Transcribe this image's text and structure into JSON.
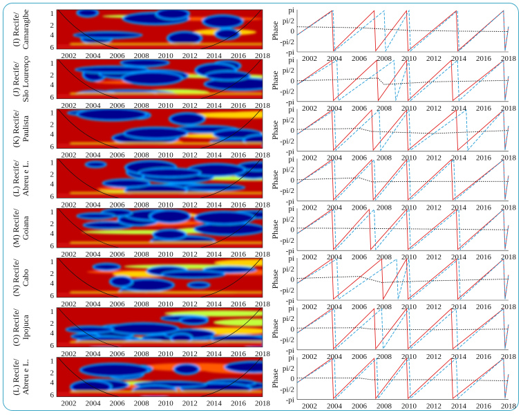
{
  "phase_axis": {
    "ylabel": "Phase",
    "yticks": [
      "pi",
      "pi/2",
      "0",
      "-pi/2",
      "-pi"
    ]
  },
  "x_ticks": [
    "2002",
    "2004",
    "2006",
    "2008",
    "2010",
    "2012",
    "2014",
    "2016",
    "2018"
  ],
  "period_ticks": [
    "1",
    "2",
    "4",
    "6"
  ],
  "colors": {
    "border": "#3aa6c6",
    "phase_red": "#e02020",
    "phase_blue": "#1f9ad6",
    "phase_black": "#111111"
  },
  "rows": [
    {
      "label": "(I) Recife/ Camaragibe",
      "label_lines": [
        "(I) Recife/",
        "Camaragibe"
      ]
    },
    {
      "label": "(J) Recife/ São Lourenço",
      "label_lines": [
        "(J) Recife/",
        "São Lourenço"
      ]
    },
    {
      "label": "(K) Recife/ Paulista",
      "label_lines": [
        "(K) Recife/",
        "Paulista"
      ]
    },
    {
      "label": "(L) Recife/ Abreu e L.",
      "label_lines": [
        "(L) Recife/",
        "Abreu e L."
      ]
    },
    {
      "label": "(M) Recife/ Goiana",
      "label_lines": [
        "(M) Recife/",
        "Goiana"
      ]
    },
    {
      "label": "(N) Recife/ Cabo",
      "label_lines": [
        "(N) Recife/",
        "Cabo"
      ]
    },
    {
      "label": "(O) Recife/ Ipojuca",
      "label_lines": [
        "(O) Recife/",
        "Ipojuca"
      ]
    },
    {
      "label": "(L) Recife/ Abreu e L.",
      "label_lines": [
        "(L) Recife/",
        "Abreu e L."
      ]
    }
  ],
  "chart_data": [
    {
      "type": "heatmap",
      "description_of_panels": "left column: wavelet coherence maps, x = year, y = period",
      "x_range": [
        2001,
        2018
      ],
      "y_ticks": [
        "1",
        "2",
        "4",
        "6"
      ],
      "colormap": "jet"
    },
    {
      "type": "line",
      "x_range": [
        2001,
        2018
      ],
      "ylim": [
        "-pi",
        "pi"
      ],
      "ylabel": "Phase",
      "series": [
        {
          "color": "red",
          "style": "solid"
        },
        {
          "color": "blue",
          "style": "dashed"
        },
        {
          "color": "black",
          "style": "dotted"
        }
      ],
      "red_series_peaks_per_row": [
        [
          2003.8,
          2007.2,
          2009.8,
          2013.8,
          2017.6
        ],
        [
          2003.8,
          2007.4,
          2009.8,
          2013.4,
          2017.6
        ],
        [
          2003.8,
          2007.0,
          2009.8,
          2013.8,
          2017.6
        ],
        [
          2003.8,
          2007.0,
          2009.8,
          2013.4,
          2017.6
        ],
        [
          2003.8,
          2006.8,
          2009.8,
          2013.8,
          2017.6
        ],
        [
          2003.8,
          2007.8,
          2009.8,
          2013.8,
          2017.6
        ],
        [
          2003.8,
          2007.2,
          2009.8,
          2013.4,
          2017.6
        ],
        [
          2003.8,
          2007.2,
          2009.8,
          2013.4,
          2017.6
        ]
      ],
      "blue_series_peaks_per_row": [
        [
          2003.9,
          2008.0,
          2010.0,
          2013.9,
          2017.6
        ],
        [
          2004.2,
          2008.8,
          2010.0,
          2013.9,
          2017.6
        ],
        [
          2004.0,
          2007.6,
          2010.0,
          2014.6,
          2017.6
        ],
        [
          2004.0,
          2007.2,
          2010.0,
          2013.6,
          2017.6
        ],
        [
          2004.0,
          2007.2,
          2010.0,
          2014.0,
          2017.6
        ],
        [
          2004.2,
          2009.0,
          2010.0,
          2014.0,
          2017.6
        ],
        [
          2004.0,
          2007.8,
          2010.0,
          2013.8,
          2017.6
        ],
        [
          2004.0,
          2007.4,
          2010.0,
          2013.8,
          2017.6
        ]
      ],
      "black_series_per_row": [
        [
          [
            2001,
            0.6
          ],
          [
            2006,
            0.45
          ],
          [
            2010,
            0.05
          ],
          [
            2014,
            -0.05
          ],
          [
            2018,
            -0.1
          ]
        ],
        [
          [
            2001,
            -0.05
          ],
          [
            2004,
            0.1
          ],
          [
            2007.5,
            0.35
          ],
          [
            2008,
            -0.6
          ],
          [
            2012,
            -0.2
          ],
          [
            2018,
            0.0
          ]
        ],
        [
          [
            2001,
            0.1
          ],
          [
            2006,
            0.25
          ],
          [
            2007,
            -0.2
          ],
          [
            2012,
            -0.5
          ],
          [
            2018,
            -0.05
          ]
        ],
        [
          [
            2001,
            0.0
          ],
          [
            2006,
            0.3
          ],
          [
            2007,
            -0.3
          ],
          [
            2012,
            -0.25
          ],
          [
            2018,
            -0.25
          ]
        ],
        [
          [
            2001,
            0.2
          ],
          [
            2006,
            0.15
          ],
          [
            2012,
            0.05
          ],
          [
            2018,
            -0.05
          ]
        ],
        [
          [
            2001,
            0.1
          ],
          [
            2006,
            0.4
          ],
          [
            2007.8,
            -0.5
          ],
          [
            2012,
            -0.25
          ],
          [
            2018,
            0.0
          ]
        ],
        [
          [
            2001,
            0.1
          ],
          [
            2006,
            0.15
          ],
          [
            2007,
            -0.05
          ],
          [
            2012,
            -0.15
          ],
          [
            2018,
            -0.05
          ]
        ],
        [
          [
            2001,
            0.05
          ],
          [
            2006,
            0.05
          ],
          [
            2007,
            -0.2
          ],
          [
            2012,
            -0.2
          ],
          [
            2018,
            -0.35
          ]
        ]
      ]
    }
  ]
}
